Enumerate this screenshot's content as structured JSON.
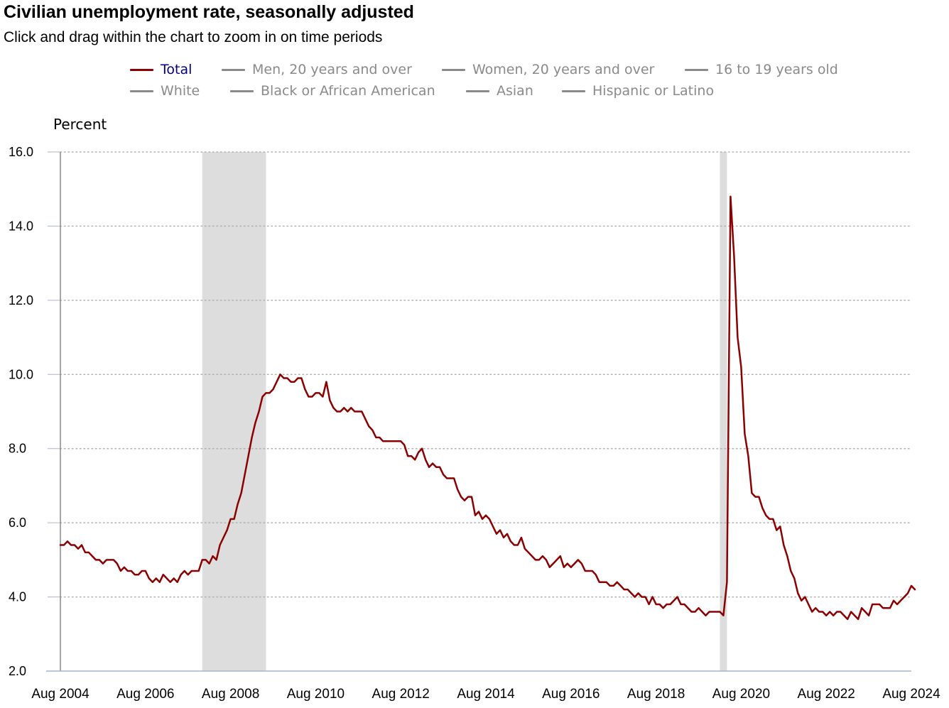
{
  "title": "Civilian unemployment rate, seasonally adjusted",
  "subtitle": "Click and drag within the chart to zoom in on time periods",
  "legend": [
    {
      "label": "Total",
      "active": true
    },
    {
      "label": "Men, 20 years and over",
      "active": false
    },
    {
      "label": "Women, 20 years and over",
      "active": false
    },
    {
      "label": "16 to 19 years old",
      "active": false
    },
    {
      "label": "White",
      "active": false
    },
    {
      "label": "Black or African American",
      "active": false
    },
    {
      "label": "Asian",
      "active": false
    },
    {
      "label": "Hispanic or Latino",
      "active": false
    }
  ],
  "colors": {
    "series": "#8b0000",
    "legend_active_text": "#000080",
    "legend_inactive": "#8a8a8a",
    "recession_shade": "#dddddd",
    "grid": "#b0b0b0"
  },
  "chart_data": {
    "type": "line",
    "title": "Civilian unemployment rate, seasonally adjusted",
    "ylabel": "Percent",
    "xlabel": "",
    "ylim": [
      2.0,
      16.0
    ],
    "yticks": [
      "2.0",
      "4.0",
      "6.0",
      "8.0",
      "10.0",
      "12.0",
      "14.0",
      "16.0"
    ],
    "xlim": [
      "Aug 2004",
      "Aug 2024"
    ],
    "xticks": [
      "Aug 2004",
      "Aug 2006",
      "Aug 2008",
      "Aug 2010",
      "Aug 2012",
      "Aug 2014",
      "Aug 2016",
      "Aug 2018",
      "Aug 2020",
      "Aug 2022",
      "Aug 2024"
    ],
    "grid": "horizontal dotted",
    "legend_position": "top",
    "recessions": [
      {
        "start": "Dec 2007",
        "end": "Jun 2009"
      },
      {
        "start": "Feb 2020",
        "end": "Apr 2020"
      }
    ],
    "series": [
      {
        "name": "Total",
        "start": "Aug 2004",
        "frequency": "monthly",
        "values": [
          5.4,
          5.4,
          5.5,
          5.4,
          5.4,
          5.3,
          5.4,
          5.2,
          5.2,
          5.1,
          5.0,
          5.0,
          4.9,
          5.0,
          5.0,
          5.0,
          4.9,
          4.7,
          4.8,
          4.7,
          4.7,
          4.6,
          4.6,
          4.7,
          4.7,
          4.5,
          4.4,
          4.5,
          4.4,
          4.6,
          4.5,
          4.4,
          4.5,
          4.4,
          4.6,
          4.7,
          4.6,
          4.7,
          4.7,
          4.7,
          5.0,
          5.0,
          4.9,
          5.1,
          5.0,
          5.4,
          5.6,
          5.8,
          6.1,
          6.1,
          6.5,
          6.8,
          7.3,
          7.8,
          8.3,
          8.7,
          9.0,
          9.4,
          9.5,
          9.5,
          9.6,
          9.8,
          10.0,
          9.9,
          9.9,
          9.8,
          9.8,
          9.9,
          9.9,
          9.6,
          9.4,
          9.4,
          9.5,
          9.5,
          9.4,
          9.8,
          9.3,
          9.1,
          9.0,
          9.0,
          9.1,
          9.0,
          9.1,
          9.0,
          9.0,
          9.0,
          8.8,
          8.6,
          8.5,
          8.3,
          8.3,
          8.2,
          8.2,
          8.2,
          8.2,
          8.2,
          8.2,
          8.1,
          7.8,
          7.8,
          7.7,
          7.9,
          8.0,
          7.7,
          7.5,
          7.6,
          7.5,
          7.5,
          7.3,
          7.2,
          7.2,
          7.2,
          6.9,
          6.7,
          6.6,
          6.7,
          6.7,
          6.2,
          6.3,
          6.1,
          6.2,
          6.1,
          5.9,
          5.7,
          5.8,
          5.6,
          5.7,
          5.5,
          5.4,
          5.4,
          5.6,
          5.3,
          5.2,
          5.1,
          5.0,
          5.0,
          5.1,
          5.0,
          4.8,
          4.9,
          5.0,
          5.1,
          4.8,
          4.9,
          4.8,
          4.9,
          5.0,
          4.9,
          4.7,
          4.7,
          4.7,
          4.6,
          4.4,
          4.4,
          4.4,
          4.3,
          4.3,
          4.4,
          4.3,
          4.2,
          4.2,
          4.1,
          4.0,
          4.1,
          4.0,
          4.0,
          3.8,
          4.0,
          3.8,
          3.8,
          3.7,
          3.8,
          3.8,
          3.9,
          4.0,
          3.8,
          3.8,
          3.7,
          3.6,
          3.6,
          3.7,
          3.6,
          3.5,
          3.6,
          3.6,
          3.6,
          3.6,
          3.5,
          4.4,
          14.8,
          13.2,
          11.0,
          10.2,
          8.4,
          7.8,
          6.8,
          6.7,
          6.7,
          6.4,
          6.2,
          6.1,
          6.1,
          5.8,
          5.9,
          5.4,
          5.1,
          4.7,
          4.5,
          4.1,
          3.9,
          4.0,
          3.8,
          3.6,
          3.7,
          3.6,
          3.6,
          3.5,
          3.6,
          3.5,
          3.6,
          3.6,
          3.5,
          3.4,
          3.6,
          3.5,
          3.4,
          3.7,
          3.6,
          3.5,
          3.8,
          3.8,
          3.8,
          3.7,
          3.7,
          3.7,
          3.9,
          3.8,
          3.9,
          4.0,
          4.1,
          4.3,
          4.2
        ]
      }
    ]
  }
}
